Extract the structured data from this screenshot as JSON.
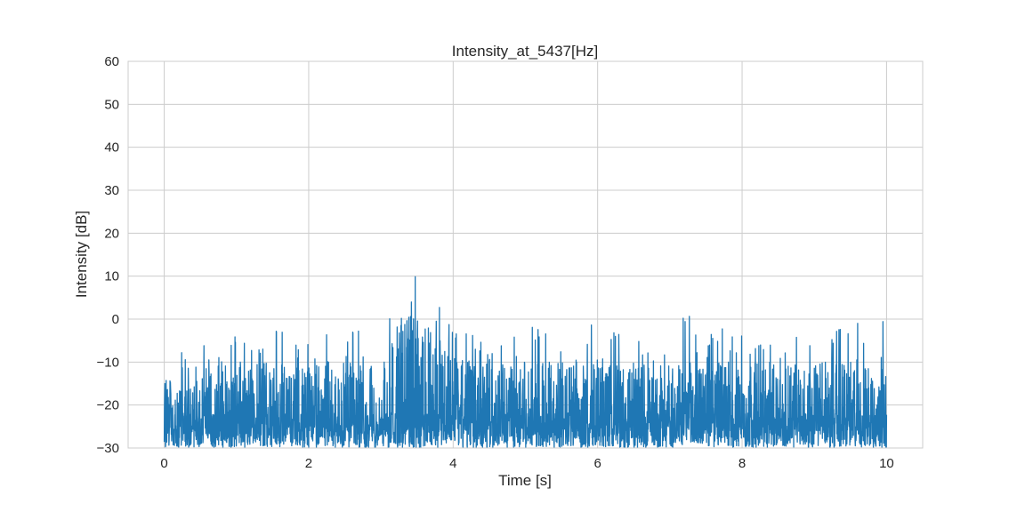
{
  "chart_data": {
    "type": "line",
    "title": "Intensity_at_5437[Hz]",
    "xlabel": "Time [s]",
    "ylabel": "Intensity [dB]",
    "xlim": [
      -0.5,
      10.5
    ],
    "ylim": [
      -30,
      60
    ],
    "xticks": [
      0,
      2,
      4,
      6,
      8,
      10
    ],
    "yticks": [
      -30,
      -20,
      -10,
      0,
      10,
      20,
      30,
      40,
      50,
      60
    ],
    "xtick_labels": [
      "0",
      "2",
      "4",
      "6",
      "8",
      "10"
    ],
    "ytick_labels": [
      "−30",
      "−20",
      "−10",
      "0",
      "10",
      "20",
      "30",
      "40",
      "50",
      "60"
    ],
    "grid": true,
    "line_color": "#1f77b4",
    "x_range": [
      0,
      10
    ],
    "series": [
      {
        "envelope_x": [
          0.0,
          0.5,
          1.0,
          1.5,
          2.0,
          2.5,
          3.0,
          3.2,
          3.3,
          3.4,
          3.5,
          3.6,
          3.7,
          3.8,
          3.9,
          4.0,
          4.5,
          5.0,
          5.5,
          6.0,
          6.5,
          7.0,
          7.4,
          7.5,
          8.0,
          8.5,
          9.0,
          9.5,
          9.75,
          10.0
        ],
        "envelope_max": [
          -11,
          -3,
          -4,
          -2,
          -5,
          -2,
          -4,
          5,
          9,
          15.5,
          13,
          10,
          8,
          7.5,
          1,
          -1,
          -2,
          -1,
          -3,
          -1,
          -3,
          -2,
          5.5,
          -1,
          -2,
          -1,
          0,
          -2,
          5,
          -1
        ],
        "typical_upper": [
          -14,
          -10,
          -11,
          -10,
          -11,
          -10,
          -11,
          -3,
          2,
          4,
          3,
          2,
          0,
          -2,
          -6,
          -9,
          -10,
          -10,
          -10,
          -10,
          -10,
          -10,
          -10,
          -10,
          -10,
          -10,
          -10,
          -10,
          -10,
          -10
        ],
        "floor": -30
      }
    ]
  }
}
